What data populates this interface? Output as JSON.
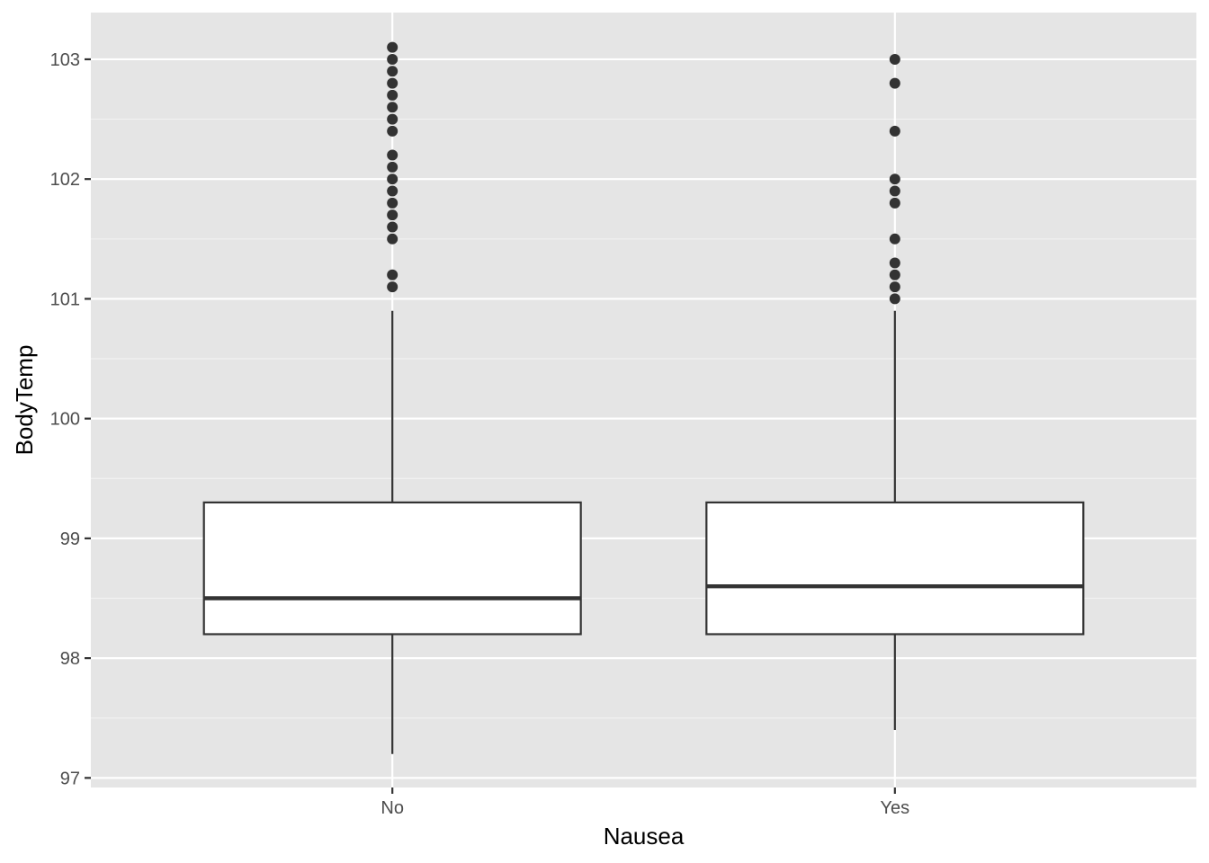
{
  "chart_data": {
    "type": "boxplot",
    "xlabel": "Nausea",
    "ylabel": "BodyTemp",
    "ylim": [
      96.92,
      103.39
    ],
    "y_ticks": [
      97,
      98,
      99,
      100,
      101,
      102,
      103
    ],
    "y_tick_labels": [
      "97",
      "98",
      "99",
      "100",
      "101",
      "102",
      "103"
    ],
    "categories": [
      "No",
      "Yes"
    ],
    "boxes": [
      {
        "category": "No",
        "whisker_low": 97.2,
        "q1": 98.2,
        "median": 98.5,
        "q3": 99.3,
        "whisker_high": 100.9,
        "outliers": [
          101.1,
          101.2,
          101.5,
          101.6,
          101.7,
          101.8,
          101.9,
          102.0,
          102.1,
          102.2,
          102.4,
          102.5,
          102.6,
          102.7,
          102.8,
          102.9,
          103.0,
          103.1
        ]
      },
      {
        "category": "Yes",
        "whisker_low": 97.4,
        "q1": 98.2,
        "median": 98.6,
        "q3": 99.3,
        "whisker_high": 100.9,
        "outliers": [
          101.0,
          101.1,
          101.2,
          101.3,
          101.5,
          101.8,
          101.9,
          102.0,
          102.4,
          102.8,
          103.0
        ]
      }
    ],
    "grid": true,
    "legend": "none",
    "colors": {
      "panel_background": "#E5E5E5",
      "grid_major": "#FFFFFF",
      "grid_minor": "#F2F2F2",
      "box_fill": "#FFFFFF",
      "box_stroke": "#333333",
      "outlier_fill": "#333333",
      "tick_label": "#4D4D4D",
      "axis_title": "#000000"
    }
  }
}
